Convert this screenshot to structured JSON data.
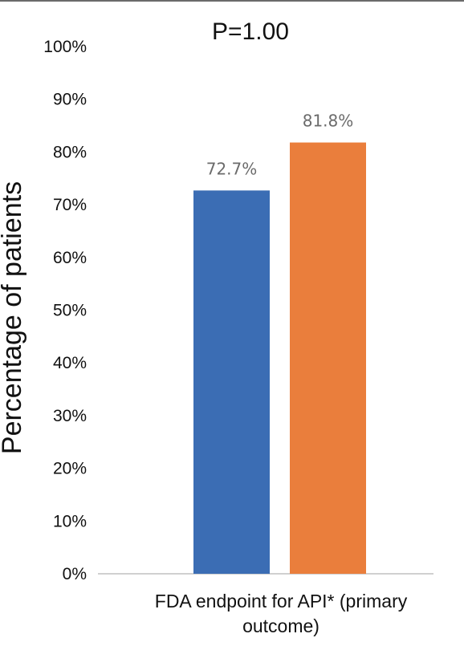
{
  "chart_data": {
    "type": "bar",
    "title": "P=1.00",
    "ylabel": "Percentage of patients",
    "categories": [
      "FDA endpoint for API* (primary outcome)"
    ],
    "category_label_lines": [
      "FDA endpoint for API* (primary",
      "outcome)"
    ],
    "series": [
      {
        "values": [
          72.7
        ],
        "color": "#3b6db4",
        "label": "72.7%"
      },
      {
        "values": [
          81.8
        ],
        "color": "#ea7e3c",
        "label": "81.8%"
      }
    ],
    "ylim": [
      0,
      100
    ],
    "y_ticks": [
      0,
      10,
      20,
      30,
      40,
      50,
      60,
      70,
      80,
      90,
      100
    ],
    "y_tick_labels": [
      "0%",
      "10%",
      "20%",
      "30%",
      "40%",
      "50%",
      "60%",
      "70%",
      "80%",
      "90%",
      "100%"
    ],
    "grid": false,
    "legend": "none"
  }
}
